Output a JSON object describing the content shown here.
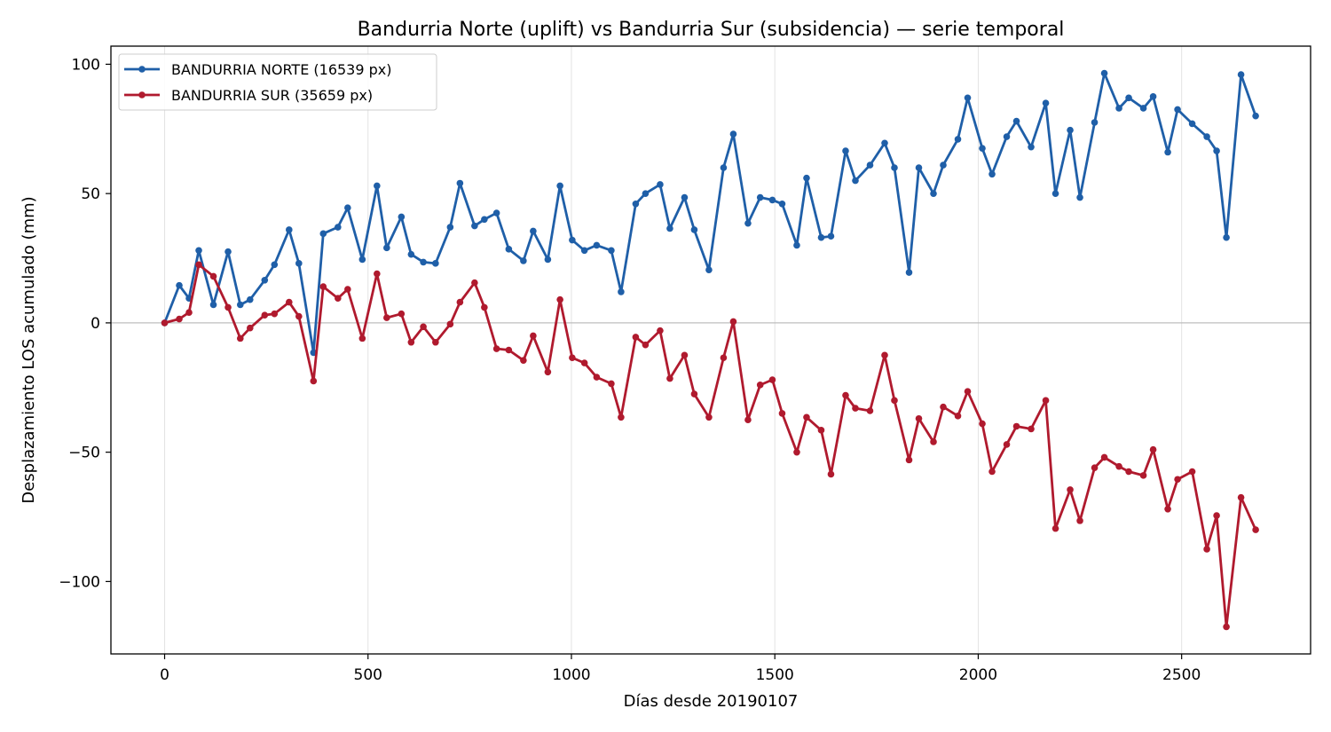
{
  "chart_data": {
    "type": "line",
    "title": "Bandurria Norte (uplift) vs Bandurria Sur (subsidencia) — serie temporal",
    "xlabel": "Días desde 20190107",
    "ylabel": "Desplazamiento LOS acumulado (mm)",
    "xlim": [
      -132,
      2817
    ],
    "ylim": [
      -128,
      107
    ],
    "xticks": [
      0,
      500,
      1000,
      1500,
      2000,
      2500
    ],
    "yticks": [
      -100,
      -50,
      0,
      50,
      100
    ],
    "xtick_labels": [
      "0",
      "500",
      "1000",
      "1500",
      "2000",
      "2500"
    ],
    "ytick_labels": [
      "−100",
      "−50",
      "0",
      "50",
      "100"
    ],
    "grid": "vertical",
    "zero_line": true,
    "legend_position": "top-left",
    "x": [
      0,
      36,
      60,
      84,
      120,
      156,
      186,
      210,
      246,
      270,
      306,
      330,
      366,
      390,
      426,
      450,
      486,
      522,
      546,
      582,
      606,
      636,
      666,
      702,
      726,
      762,
      786,
      816,
      846,
      882,
      906,
      942,
      972,
      1002,
      1032,
      1062,
      1098,
      1122,
      1158,
      1182,
      1218,
      1242,
      1278,
      1302,
      1338,
      1374,
      1398,
      1434,
      1464,
      1494,
      1518,
      1554,
      1578,
      1614,
      1638,
      1674,
      1698,
      1734,
      1770,
      1794,
      1830,
      1854,
      1890,
      1914,
      1950,
      1974,
      2010,
      2034,
      2070,
      2094,
      2130,
      2166,
      2190,
      2226,
      2250,
      2286,
      2310,
      2346,
      2370,
      2406,
      2430,
      2466,
      2490,
      2526,
      2562,
      2586,
      2610,
      2646,
      2682
    ],
    "series": [
      {
        "name": "BANDURRIA NORTE (16539 px)",
        "color": "#1f5fa8",
        "values": [
          0,
          14.5,
          9.5,
          28,
          7,
          27.5,
          7,
          9,
          16.5,
          22.5,
          36,
          23,
          -11.5,
          34.5,
          37,
          44.5,
          24.5,
          53,
          29,
          41,
          26.5,
          23.5,
          23,
          37,
          54,
          37.5,
          40,
          42.5,
          28.5,
          24,
          35.5,
          24.5,
          53,
          32,
          28,
          30,
          28,
          12,
          46,
          50,
          53.5,
          36.5,
          48.5,
          36,
          20.5,
          60,
          73,
          38.5,
          48.5,
          47.5,
          46,
          30,
          56,
          33,
          33.5,
          66.5,
          55,
          61,
          69.5,
          60,
          19.5,
          60,
          50,
          61,
          71,
          87,
          67.5,
          57.5,
          72,
          78,
          68,
          85,
          50,
          74.5,
          48.5,
          77.5,
          96.5,
          83,
          87,
          83,
          87.5,
          66,
          82.5,
          77,
          72,
          66.5,
          33,
          96,
          80
        ]
      },
      {
        "name": "BANDURRIA SUR (35659 px)",
        "color": "#b01a2e",
        "values": [
          0,
          1.5,
          4,
          22.5,
          18,
          6,
          -6,
          -2,
          3,
          3.5,
          8,
          2.5,
          -22.5,
          14,
          9.5,
          13,
          -6,
          19,
          2,
          3.5,
          -7.5,
          -1.5,
          -7.5,
          -0.5,
          8,
          15.5,
          6,
          -10,
          -10.5,
          -14.5,
          -5,
          -19,
          9,
          -13.5,
          -15.5,
          -21,
          -23.5,
          -36.5,
          -5.5,
          -8.5,
          -3,
          -21.5,
          -12.5,
          -27.5,
          -36.5,
          -13.5,
          0.5,
          -37.5,
          -24,
          -22,
          -35,
          -50,
          -36.5,
          -41.5,
          -58.5,
          -28,
          -33,
          -34,
          -12.5,
          -30,
          -53,
          -37,
          -46,
          -32.5,
          -36,
          -26.5,
          -39,
          -57.5,
          -47,
          -40,
          -41,
          -30,
          -79.5,
          -64.5,
          -76.5,
          -56,
          -52,
          -55.5,
          -57.5,
          -59,
          -49,
          -72,
          -60.5,
          -57.5,
          -87.5,
          -74.5,
          -117.5,
          -67.5,
          -80
        ]
      }
    ]
  }
}
